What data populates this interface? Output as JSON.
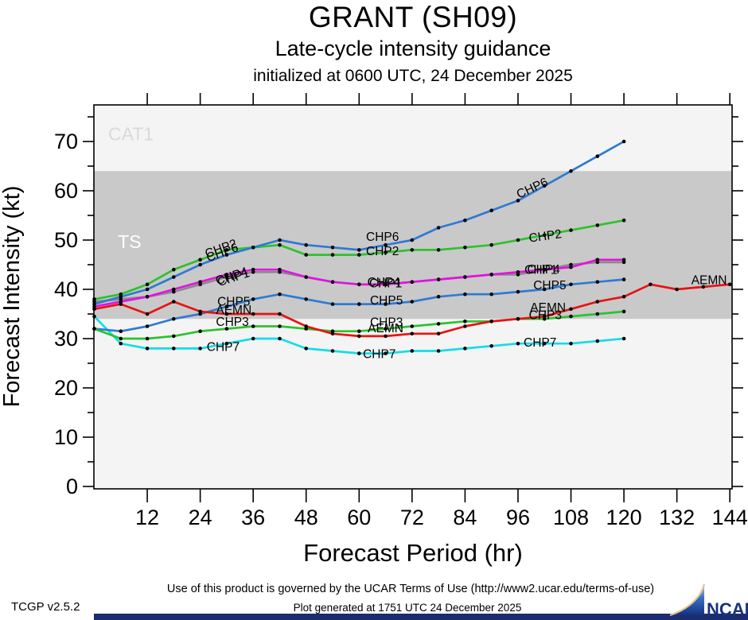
{
  "header": {
    "title": "GRANT (SH09)",
    "subtitle": "Late-cycle intensity guidance",
    "init_line": "initialized at 0600 UTC, 24 December 2025"
  },
  "axes": {
    "x_label": "Forecast Period (hr)",
    "y_label": "Forecast Intensity (kt)",
    "x_ticks": [
      12,
      24,
      36,
      48,
      60,
      72,
      84,
      96,
      108,
      120,
      132,
      144
    ],
    "y_major_ticks": [
      0,
      10,
      20,
      30,
      40,
      50,
      60,
      70
    ],
    "y_minor_step": 5,
    "x_range": [
      0,
      144.6
    ],
    "y_range": [
      0,
      77.4
    ],
    "grid": "off",
    "legend": "labels drawn on lines"
  },
  "bands": {
    "plot_bg": "#f4f4f4",
    "ts_band": {
      "label": "TS",
      "from_kt": 34,
      "to_kt": 64,
      "fill": "#c9c9c9",
      "label_color": "#ffffff",
      "label_hr": 8.0,
      "label_kt": 49.7
    },
    "cat1_band": {
      "label": "CAT1",
      "above_kt": 64,
      "fill": "#f4f4f4",
      "label_color": "#d9d9d9",
      "label_hr": 8.3,
      "label_kt": 71.5
    }
  },
  "chart_data": {
    "type": "line",
    "title": "GRANT (SH09) late-cycle intensity guidance",
    "xlabel": "Forecast Period (hr)",
    "ylabel": "Forecast Intensity (kt)",
    "x_hours": [
      0,
      6,
      12,
      18,
      24,
      30,
      36,
      42,
      48,
      54,
      60,
      66,
      72,
      78,
      84,
      90,
      96,
      102,
      108,
      114,
      120
    ],
    "aemn_hours": [
      0,
      6,
      12,
      18,
      24,
      30,
      36,
      42,
      48,
      54,
      60,
      66,
      72,
      78,
      84,
      90,
      96,
      102,
      108,
      114,
      120,
      126,
      132,
      138,
      144
    ],
    "series": [
      {
        "name": "CHP1",
        "color": "#8a8a8a",
        "values": [
          37.5,
          38,
          38.5,
          39.5,
          41,
          42.5,
          43.5,
          43.5,
          42.5,
          41.5,
          41,
          41,
          41.5,
          42,
          42.5,
          43,
          43,
          44,
          45,
          45.5,
          45.5
        ]
      },
      {
        "name": "CHP7",
        "color": "#12dde8",
        "values": [
          34.5,
          29,
          28,
          28,
          28,
          29,
          30,
          30,
          28,
          27.5,
          27,
          27,
          27.5,
          27.5,
          28,
          28.5,
          29,
          29,
          29,
          29.5,
          30
        ]
      },
      {
        "name": "CHP5",
        "color": "#2e7ad4",
        "values": [
          32,
          31.5,
          32.5,
          34,
          35,
          36.5,
          38,
          39,
          38,
          37,
          37,
          37,
          37.5,
          38.5,
          39,
          39,
          39.5,
          40,
          41,
          41.5,
          42
        ]
      },
      {
        "name": "CHP3",
        "color": "#2dc22d",
        "values": [
          32,
          30,
          30,
          30.5,
          31.5,
          32,
          32.5,
          32.5,
          32,
          31.5,
          31.5,
          32,
          32.5,
          33,
          33.5,
          33.5,
          34,
          34,
          34.5,
          35,
          35.5
        ]
      },
      {
        "name": "CHP2",
        "color": "#2dc22d",
        "values": [
          38,
          39,
          41,
          44,
          46,
          48,
          48.5,
          49,
          47,
          47,
          47,
          47.5,
          48,
          48,
          48.5,
          49,
          50,
          51,
          52,
          53,
          54
        ]
      },
      {
        "name": "CHP4",
        "color": "#e312e3",
        "values": [
          36.5,
          37.5,
          38.5,
          40,
          41.5,
          43,
          44,
          44,
          42.5,
          41.5,
          41,
          41,
          41.5,
          42,
          42.5,
          43,
          43.5,
          44,
          44.5,
          46,
          46
        ]
      },
      {
        "name": "CHP6",
        "color": "#2e7ad4",
        "values": [
          37,
          38.5,
          40,
          42.5,
          45,
          47,
          48.5,
          50,
          49,
          48.5,
          48,
          49,
          50,
          52.5,
          54,
          56,
          58,
          61,
          64,
          67,
          70
        ]
      },
      {
        "name": "AEMN",
        "color": "#e81212",
        "values": [
          36,
          37,
          35,
          37.5,
          35.5,
          35,
          35,
          35,
          32.5,
          31,
          30.5,
          30.5,
          31,
          31,
          32.5,
          33.5,
          34,
          34.5,
          36,
          37.5,
          38.5,
          41,
          40,
          40.5,
          41
        ]
      }
    ],
    "line_labels": [
      {
        "text": "CHP2",
        "hr": 29.0,
        "kt": 48.4,
        "rot": -20
      },
      {
        "text": "CHP6",
        "hr": 29.3,
        "kt": 47.6,
        "rot": -20
      },
      {
        "text": "CHP1",
        "hr": 31.8,
        "kt": 42.5,
        "rot": -18
      },
      {
        "text": "CHP4",
        "hr": 31.4,
        "kt": 42.8,
        "rot": -18
      },
      {
        "text": "CHP5",
        "hr": 31.6,
        "kt": 37.6,
        "rot": 0
      },
      {
        "text": "AEMN",
        "hr": 31.6,
        "kt": 35.9,
        "rot": 0
      },
      {
        "text": "CHP3",
        "hr": 31.3,
        "kt": 33.5,
        "rot": 0
      },
      {
        "text": "CHP7",
        "hr": 29.2,
        "kt": 28.4,
        "rot": 0
      },
      {
        "text": "CHP6",
        "hr": 65.3,
        "kt": 50.7,
        "rot": 0
      },
      {
        "text": "CHP2",
        "hr": 65.3,
        "kt": 47.8,
        "rot": 0
      },
      {
        "text": "CHP1",
        "hr": 66.0,
        "kt": 41.3,
        "rot": 0
      },
      {
        "text": "CHP4",
        "hr": 65.6,
        "kt": 41.5,
        "rot": 0
      },
      {
        "text": "CHP5",
        "hr": 66.2,
        "kt": 37.8,
        "rot": 0
      },
      {
        "text": "CHP3",
        "hr": 66.2,
        "kt": 33.4,
        "rot": 0
      },
      {
        "text": "AEMN",
        "hr": 66.0,
        "kt": 32.2,
        "rot": 0
      },
      {
        "text": "CHP7",
        "hr": 64.6,
        "kt": 26.9,
        "rot": 0
      },
      {
        "text": "CHP6",
        "hr": 99.6,
        "kt": 60.7,
        "rot": -25
      },
      {
        "text": "CHP2",
        "hr": 102.3,
        "kt": 50.9,
        "rot": -8
      },
      {
        "text": "CHP1",
        "hr": 101.2,
        "kt": 44.0,
        "rot": 0
      },
      {
        "text": "CHP4",
        "hr": 101.8,
        "kt": 44.1,
        "rot": 0
      },
      {
        "text": "CHP5",
        "hr": 103.2,
        "kt": 40.9,
        "rot": 0
      },
      {
        "text": "AEMN",
        "hr": 102.8,
        "kt": 36.4,
        "rot": 0
      },
      {
        "text": "CHP3",
        "hr": 102.2,
        "kt": 34.8,
        "rot": 0
      },
      {
        "text": "CHP7",
        "hr": 101.0,
        "kt": 29.3,
        "rot": 0
      },
      {
        "text": "AEMN",
        "hr": 139.3,
        "kt": 41.9,
        "rot": 0
      }
    ]
  },
  "footer": {
    "terms": "Use of this product is governed by the UCAR Terms of Use (http://www2.ucar.edu/terms-of-use)",
    "generated": "Plot generated at 1751 UTC   24 December 2025",
    "version": "TCGP v2.5.2",
    "logo_text": "NCAR"
  }
}
